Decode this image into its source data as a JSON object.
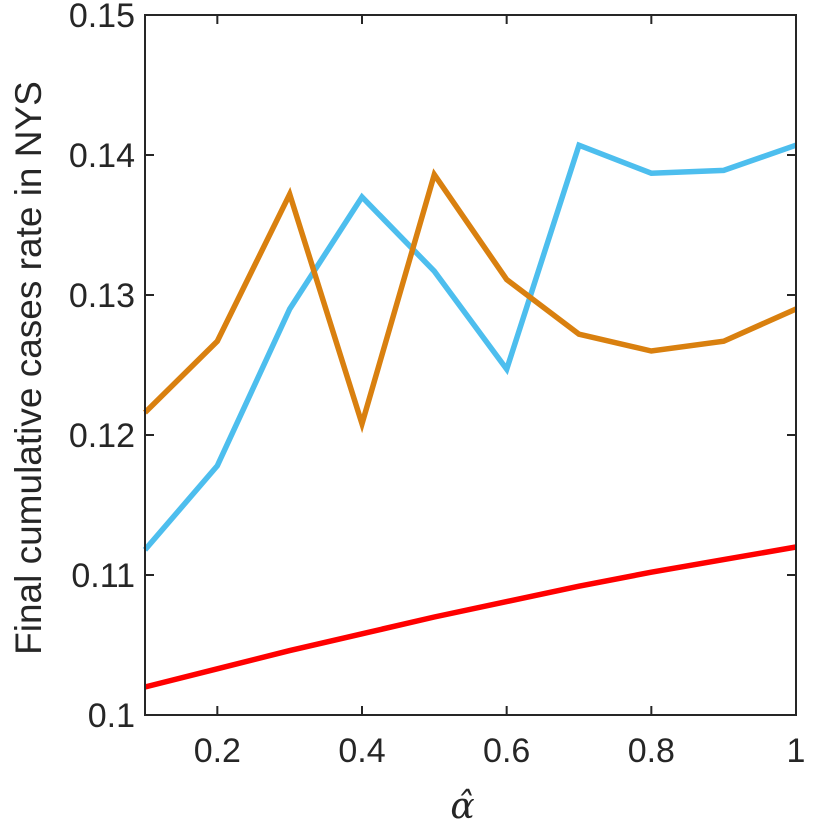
{
  "chart_data": {
    "type": "line",
    "title": "",
    "xlabel": "α̂",
    "ylabel": "Final cumulative cases rate in NYS",
    "xlim": [
      0.1,
      1.0
    ],
    "ylim": [
      0.1,
      0.15
    ],
    "x": [
      0.1,
      0.2,
      0.3,
      0.4,
      0.5,
      0.6,
      0.7,
      0.8,
      0.9,
      1.0
    ],
    "xticks": [
      0.2,
      0.4,
      0.6,
      0.8,
      1.0
    ],
    "xtick_labels": [
      "0.2",
      "0.4",
      "0.6",
      "0.8",
      "1"
    ],
    "yticks": [
      0.1,
      0.11,
      0.12,
      0.13,
      0.14,
      0.15
    ],
    "ytick_labels": [
      "0.1",
      "0.11",
      "0.12",
      "0.13",
      "0.14",
      "0.15"
    ],
    "grid": false,
    "legend": "none",
    "series": [
      {
        "color": "#4DBEEE",
        "values": [
          0.1118,
          0.1178,
          0.129,
          0.137,
          0.1317,
          0.1247,
          0.1407,
          0.1387,
          0.1389,
          0.1407
        ]
      },
      {
        "color": "#D9800F",
        "values": [
          0.1216,
          0.1267,
          0.1372,
          0.1208,
          0.1386,
          0.1311,
          0.1272,
          0.126,
          0.1267,
          0.129
        ]
      },
      {
        "color": "#FF0000",
        "values": [
          0.102,
          0.1033,
          0.1046,
          0.1058,
          0.107,
          0.1081,
          0.1092,
          0.1102,
          0.1111,
          0.112
        ]
      }
    ]
  }
}
